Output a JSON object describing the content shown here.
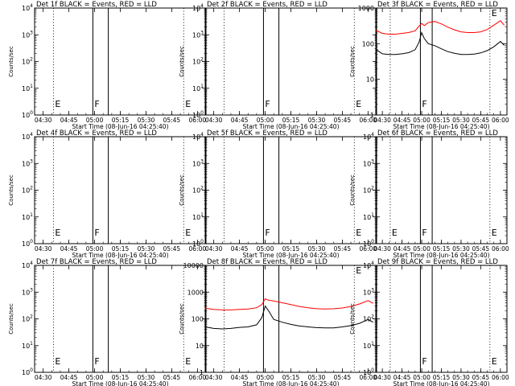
{
  "figure": {
    "start_label_prefix": "Start Time",
    "start_time": "(08-Jun-16 04:25:40)",
    "ylabel": "Counts/sec",
    "colors": {
      "events": "#000000",
      "lld": "#ff0000"
    }
  },
  "chart_data": [
    {
      "type": "line",
      "title": "Det 1f BLACK = Events, RED = LLD",
      "xlabel": "Start Time (08-Jun-16 04:25:40)",
      "ylabel": "Counts/sec",
      "xlim": [
        "04:25",
        "06:05"
      ],
      "ylog": true,
      "ylim": [
        1,
        10000
      ],
      "xticks": [
        "04:30",
        "04:45",
        "05:00",
        "05:15",
        "05:30",
        "05:45",
        "06:00"
      ],
      "yticks": [
        "10^0",
        "10^1",
        "10^2",
        "10^3",
        "10^4"
      ],
      "markers": [
        {
          "label": "E",
          "time": "04:36",
          "style": "dotted"
        },
        {
          "label": "F",
          "time": "04:59",
          "style": "solid"
        },
        {
          "label": "",
          "time": "05:08",
          "style": "solid"
        },
        {
          "label": "E",
          "time": "05:52",
          "style": "dotted"
        }
      ],
      "series": []
    },
    {
      "type": "line",
      "title": "Det 2f BLACK = Events, RED = LLD",
      "xlabel": "Start Time (08-Jun-16 04:25:40)",
      "ylabel": "Counts/sec",
      "xlim": [
        "04:25",
        "06:05"
      ],
      "ylog": true,
      "ylim": [
        1,
        10000
      ],
      "xticks": [
        "04:30",
        "04:45",
        "05:00",
        "05:15",
        "05:30",
        "05:45",
        "06:00"
      ],
      "yticks": [
        "10^0",
        "10^1",
        "10^2",
        "10^3",
        "10^4"
      ],
      "markers": [
        {
          "label": "",
          "time": "04:36",
          "style": "dotted"
        },
        {
          "label": "F",
          "time": "04:59",
          "style": "solid"
        },
        {
          "label": "",
          "time": "05:08",
          "style": "solid"
        },
        {
          "label": "E",
          "time": "05:52",
          "style": "dotted"
        }
      ],
      "series": []
    },
    {
      "type": "line",
      "title": "Det 3f BLACK = Events, RED = LLD",
      "xlabel": "Start Time (08-Jun-16 04:25:40)",
      "ylabel": "Counts/sec",
      "xlim": [
        "04:25",
        "06:05"
      ],
      "ylog": true,
      "ylim": [
        1,
        1000
      ],
      "xticks": [
        "04:30",
        "04:45",
        "05:00",
        "05:15",
        "05:30",
        "05:45",
        "06:00"
      ],
      "yticks": [
        "1",
        "10",
        "100",
        "1000"
      ],
      "markers": [
        {
          "label": "",
          "time": "04:36",
          "style": "dotted"
        },
        {
          "label": "F",
          "time": "04:59",
          "style": "solid"
        },
        {
          "label": "",
          "time": "05:08",
          "style": "solid"
        },
        {
          "label": "E",
          "time": "05:52",
          "style": "dotted"
        }
      ],
      "series": [
        {
          "color": "#ff0000",
          "x": [
            "04:25",
            "04:30",
            "04:35",
            "04:40",
            "04:45",
            "04:50",
            "04:55",
            "04:58",
            "05:00",
            "05:02",
            "05:05",
            "05:10",
            "05:15",
            "05:20",
            "05:25",
            "05:30",
            "05:35",
            "05:40",
            "05:45",
            "05:50",
            "05:55",
            "06:00",
            "06:03"
          ],
          "values": [
            240,
            195,
            185,
            185,
            195,
            205,
            230,
            310,
            370,
            320,
            390,
            420,
            360,
            290,
            245,
            215,
            205,
            205,
            215,
            250,
            330,
            440,
            330
          ]
        },
        {
          "color": "#000000",
          "x": [
            "04:25",
            "04:30",
            "04:35",
            "04:40",
            "04:45",
            "04:50",
            "04:55",
            "04:58",
            "05:00",
            "05:02",
            "05:05",
            "05:10",
            "05:15",
            "05:20",
            "05:25",
            "05:30",
            "05:35",
            "05:40",
            "05:45",
            "05:50",
            "05:55",
            "06:00",
            "06:03"
          ],
          "values": [
            70,
            52,
            50,
            50,
            52,
            56,
            68,
            110,
            205,
            140,
            100,
            88,
            72,
            60,
            54,
            50,
            50,
            51,
            55,
            64,
            82,
            115,
            90
          ]
        }
      ]
    },
    {
      "type": "line",
      "title": "Det 4f BLACK = Events, RED = LLD",
      "xlabel": "Start Time (08-Jun-16 04:25:40)",
      "ylabel": "Counts/sec",
      "xlim": [
        "04:25",
        "06:05"
      ],
      "ylog": true,
      "ylim": [
        1,
        10000
      ],
      "xticks": [
        "04:30",
        "04:45",
        "05:00",
        "05:15",
        "05:30",
        "05:45",
        "06:00"
      ],
      "yticks": [
        "10^0",
        "10^1",
        "10^2",
        "10^3",
        "10^4"
      ],
      "markers": [
        {
          "label": "E",
          "time": "04:36",
          "style": "dotted"
        },
        {
          "label": "F",
          "time": "04:59",
          "style": "solid"
        },
        {
          "label": "",
          "time": "05:08",
          "style": "solid"
        },
        {
          "label": "E",
          "time": "05:52",
          "style": "dotted"
        }
      ],
      "series": []
    },
    {
      "type": "line",
      "title": "Det 5f BLACK = Events, RED = LLD",
      "xlabel": "Start Time (08-Jun-16 04:25:40)",
      "ylabel": "Counts/sec",
      "xlim": [
        "04:25",
        "06:05"
      ],
      "ylog": true,
      "ylim": [
        1,
        10000
      ],
      "xticks": [
        "04:30",
        "04:45",
        "05:00",
        "05:15",
        "05:30",
        "05:45",
        "06:00"
      ],
      "yticks": [
        "10^0",
        "10^1",
        "10^2",
        "10^3",
        "10^4"
      ],
      "markers": [
        {
          "label": "",
          "time": "04:36",
          "style": "dotted"
        },
        {
          "label": "F",
          "time": "04:59",
          "style": "solid"
        },
        {
          "label": "",
          "time": "05:08",
          "style": "solid"
        },
        {
          "label": "E",
          "time": "05:52",
          "style": "dotted"
        }
      ],
      "series": []
    },
    {
      "type": "line",
      "title": "Det 6f BLACK = Events, RED = LLD",
      "xlabel": "Start Time (08-Jun-16 04:25:40)",
      "ylabel": "Counts/sec",
      "xlim": [
        "04:25",
        "06:05"
      ],
      "ylog": true,
      "ylim": [
        1,
        10000
      ],
      "xticks": [
        "04:30",
        "04:45",
        "05:00",
        "05:15",
        "05:30",
        "05:45",
        "06:00"
      ],
      "yticks": [
        "10^0",
        "10^1",
        "10^2",
        "10^3",
        "10^4"
      ],
      "markers": [
        {
          "label": "E",
          "time": "04:36",
          "style": "dotted"
        },
        {
          "label": "F",
          "time": "04:59",
          "style": "solid"
        },
        {
          "label": "",
          "time": "05:08",
          "style": "solid"
        },
        {
          "label": "E",
          "time": "05:52",
          "style": "dotted"
        }
      ],
      "series": []
    },
    {
      "type": "line",
      "title": "Det 7f BLACK = Events, RED = LLD",
      "xlabel": "Start Time (08-Jun-16 04:25:40)",
      "ylabel": "Counts/sec",
      "xlim": [
        "04:25",
        "06:05"
      ],
      "ylog": true,
      "ylim": [
        1,
        10000
      ],
      "xticks": [
        "04:30",
        "04:45",
        "05:00",
        "05:15",
        "05:30",
        "05:45",
        "06:00"
      ],
      "yticks": [
        "10^0",
        "10^1",
        "10^2",
        "10^3",
        "10^4"
      ],
      "markers": [
        {
          "label": "E",
          "time": "04:36",
          "style": "dotted"
        },
        {
          "label": "F",
          "time": "04:59",
          "style": "solid"
        },
        {
          "label": "",
          "time": "05:08",
          "style": "solid"
        },
        {
          "label": "E",
          "time": "05:52",
          "style": "dotted"
        }
      ],
      "series": []
    },
    {
      "type": "line",
      "title": "Det 8f BLACK = Events, RED = LLD",
      "xlabel": "Start Time (08-Jun-16 04:25:40)",
      "ylabel": "Counts/sec",
      "xlim": [
        "04:25",
        "06:05"
      ],
      "ylog": true,
      "ylim": [
        1,
        10000
      ],
      "xticks": [
        "04:30",
        "04:45",
        "05:00",
        "05:15",
        "05:30",
        "05:45",
        "06:00"
      ],
      "yticks": [
        "1",
        "10",
        "100",
        "1000",
        "10000"
      ],
      "markers": [
        {
          "label": "",
          "time": "04:36",
          "style": "dotted"
        },
        {
          "label": "",
          "time": "04:59",
          "style": "solid"
        },
        {
          "label": "",
          "time": "05:08",
          "style": "solid"
        },
        {
          "label": "E",
          "time": "05:52",
          "style": "dotted"
        }
      ],
      "series": [
        {
          "color": "#ff0000",
          "x": [
            "04:25",
            "04:30",
            "04:35",
            "04:40",
            "04:45",
            "04:50",
            "04:55",
            "04:58",
            "05:00",
            "05:02",
            "05:05",
            "05:10",
            "05:15",
            "05:20",
            "05:25",
            "05:30",
            "05:35",
            "05:40",
            "05:45",
            "05:50",
            "05:55",
            "06:00",
            "06:03"
          ],
          "values": [
            250,
            225,
            215,
            215,
            225,
            235,
            260,
            340,
            560,
            500,
            470,
            400,
            340,
            290,
            260,
            240,
            235,
            240,
            255,
            290,
            360,
            480,
            380
          ]
        },
        {
          "color": "#000000",
          "x": [
            "04:25",
            "04:30",
            "04:35",
            "04:40",
            "04:45",
            "04:50",
            "04:55",
            "04:58",
            "05:00",
            "05:02",
            "05:05",
            "05:10",
            "05:15",
            "05:20",
            "05:25",
            "05:30",
            "05:35",
            "05:40",
            "05:45",
            "05:50",
            "05:55",
            "06:00",
            "06:03"
          ],
          "values": [
            50,
            44,
            42,
            44,
            48,
            50,
            60,
            110,
            300,
            200,
            95,
            75,
            62,
            54,
            50,
            47,
            46,
            46,
            50,
            56,
            68,
            95,
            75
          ]
        }
      ]
    },
    {
      "type": "line",
      "title": "Det 9f BLACK = Events, RED = LLD",
      "xlabel": "Start Time (08-Jun-16 04:25:40)",
      "ylabel": "Counts/sec",
      "xlim": [
        "04:25",
        "06:05"
      ],
      "ylog": true,
      "ylim": [
        1,
        10000
      ],
      "xticks": [
        "04:30",
        "04:45",
        "05:00",
        "05:15",
        "05:30",
        "05:45",
        "06:00"
      ],
      "yticks": [
        "10^0",
        "10^1",
        "10^2",
        "10^3",
        "10^4"
      ],
      "markers": [
        {
          "label": "",
          "time": "04:36",
          "style": "dotted"
        },
        {
          "label": "F",
          "time": "04:59",
          "style": "solid"
        },
        {
          "label": "",
          "time": "05:08",
          "style": "solid"
        },
        {
          "label": "E",
          "time": "05:52",
          "style": "dotted"
        }
      ],
      "series": []
    }
  ]
}
